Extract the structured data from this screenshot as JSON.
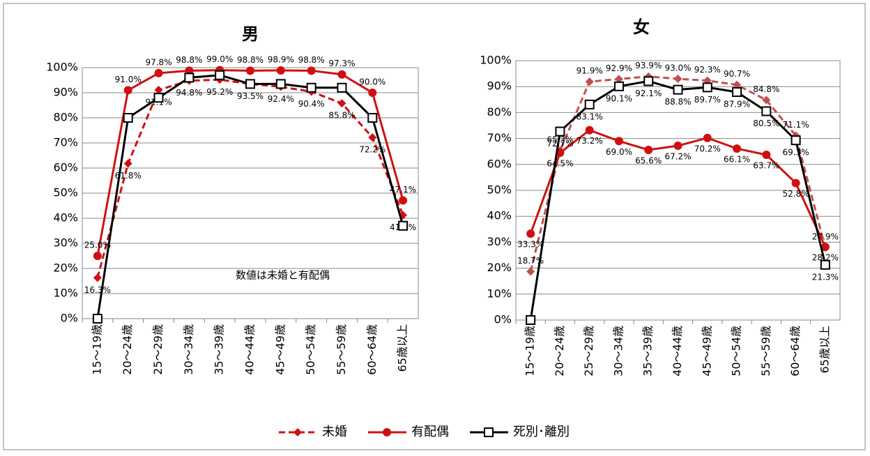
{
  "chart_data": [
    {
      "type": "line",
      "title": "男",
      "annotation": "数値は未婚と有配偶",
      "categories": [
        "15～19歳",
        "20～24歳",
        "25～29歳",
        "30～34歳",
        "35～39歳",
        "40～44歳",
        "45～49歳",
        "50～54歳",
        "55～59歳",
        "60～64歳",
        "65歳以上"
      ],
      "ylim": [
        0,
        100
      ],
      "yticks": [
        {
          "value": 0,
          "label": "0%"
        },
        {
          "value": 10,
          "label": "10%"
        },
        {
          "value": 20,
          "label": "20%"
        },
        {
          "value": 30,
          "label": "30%"
        },
        {
          "value": 40,
          "label": "40%"
        },
        {
          "value": 50,
          "label": "50%"
        },
        {
          "value": 60,
          "label": "60%"
        },
        {
          "value": 70,
          "label": "70%"
        },
        {
          "value": 80,
          "label": "80%"
        },
        {
          "value": 90,
          "label": "90%"
        },
        {
          "value": 100,
          "label": "100%"
        }
      ],
      "series": [
        {
          "name": "未婚",
          "color": "#d01010",
          "dashed": true,
          "marker": "diamond",
          "values": [
            16.3,
            61.8,
            91.1,
            94.8,
            95.2,
            93.5,
            92.4,
            90.4,
            85.8,
            72.2,
            41.2
          ],
          "value_labels": [
            "16.3%",
            "61.8%",
            "91.1%",
            "94.8%",
            "95.2%",
            "93.5%",
            "92.4%",
            "90.4%",
            "85.8%",
            "72.2%",
            "41.2%"
          ]
        },
        {
          "name": "有配偶",
          "color": "#d01010",
          "dashed": false,
          "marker": "circle",
          "values": [
            25.0,
            91.0,
            97.8,
            98.8,
            99.0,
            98.8,
            98.9,
            98.8,
            97.3,
            90.0,
            47.1
          ],
          "value_labels": [
            "25.0%",
            "91.0%",
            "97.8%",
            "98.8%",
            "99.0%",
            "98.8%",
            "98.9%",
            "98.8%",
            "97.3%",
            "90.0%",
            "47.1%"
          ]
        },
        {
          "name": "死別･離別",
          "color": "#000000",
          "dashed": false,
          "marker": "square",
          "values": [
            0,
            80,
            88,
            96,
            97,
            93.5,
            93.5,
            92,
            92,
            80,
            37
          ]
        }
      ]
    },
    {
      "type": "line",
      "title": "女",
      "categories": [
        "15～19歳",
        "20～24歳",
        "25～29歳",
        "30～34歳",
        "35～39歳",
        "40～44歳",
        "45～49歳",
        "50～54歳",
        "55～59歳",
        "60～64歳",
        "65歳以上"
      ],
      "ylim": [
        0,
        100
      ],
      "yticks": [
        {
          "value": 0,
          "label": "0%"
        },
        {
          "value": 10,
          "label": "10%"
        },
        {
          "value": 20,
          "label": "20%"
        },
        {
          "value": 30,
          "label": "30%"
        },
        {
          "value": 40,
          "label": "40%"
        },
        {
          "value": 50,
          "label": "50%"
        },
        {
          "value": 60,
          "label": "60%"
        },
        {
          "value": 70,
          "label": "70%"
        },
        {
          "value": 80,
          "label": "80%"
        },
        {
          "value": 90,
          "label": "90%"
        },
        {
          "value": 100,
          "label": "100%"
        }
      ],
      "series": [
        {
          "name": "未婚",
          "color": "#c0504d",
          "dashed": true,
          "marker": "diamond",
          "values": [
            18.7,
            65.3,
            91.9,
            92.9,
            93.9,
            93.0,
            92.3,
            90.7,
            84.8,
            71.1,
            27.9
          ],
          "value_labels": [
            "18.7%",
            "65.3%",
            "91.9%",
            "92.9%",
            "93.9%",
            "93.0%",
            "92.3%",
            "90.7%",
            "84.8%",
            "71.1%",
            "27.9%"
          ]
        },
        {
          "name": "有配偶",
          "color": "#d01010",
          "dashed": false,
          "marker": "circle",
          "values": [
            33.3,
            64.5,
            73.2,
            69.0,
            65.6,
            67.2,
            70.2,
            66.1,
            63.7,
            52.8,
            28.2
          ],
          "value_labels": [
            "33.3%",
            "64.5%",
            "73.2%",
            "69.0%",
            "65.6%",
            "67.2%",
            "70.2%",
            "66.1%",
            "63.7%",
            "52.8%",
            "28.2%"
          ]
        },
        {
          "name": "死別･離別",
          "color": "#000000",
          "dashed": false,
          "marker": "square",
          "values": [
            0,
            72.7,
            83.1,
            90.1,
            92.1,
            88.8,
            89.7,
            87.9,
            80.5,
            69.3,
            21.3
          ],
          "value_labels": [
            null,
            "72.7%",
            "83.1%",
            "90.1%",
            "92.1%",
            "88.8%",
            "89.7%",
            "87.9%",
            "80.5%",
            "69.3%",
            "21.3%"
          ]
        }
      ]
    }
  ]
}
